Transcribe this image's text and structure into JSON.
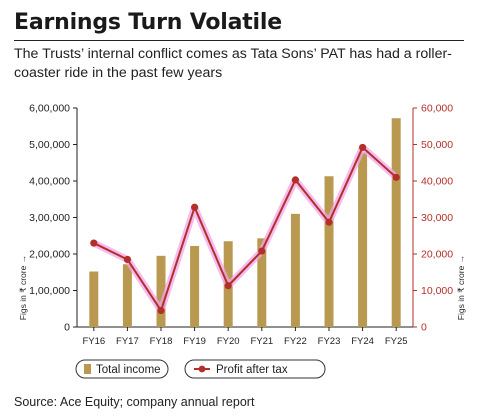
{
  "header": {
    "title": "Earnings Turn Volatile",
    "subtitle": "The Trusts’ internal conflict comes as Tata Sons’ PAT has had a roller-coaster ride in the past few years"
  },
  "source": "Source: Ace Equity; company annual report",
  "chart_data": {
    "type": "bar+line",
    "categories": [
      "FY16",
      "FY17",
      "FY18",
      "FY19",
      "FY20",
      "FY21",
      "FY22",
      "FY23",
      "FY24",
      "FY25"
    ],
    "series": [
      {
        "name": "Total income",
        "type": "bar",
        "axis": "left",
        "color": "#b8994f",
        "values": [
          152000,
          172000,
          195000,
          222000,
          235000,
          243000,
          310000,
          413000,
          478000,
          572000
        ]
      },
      {
        "name": "Profit after tax",
        "type": "line",
        "axis": "right",
        "color": "#b3302a",
        "glow": "#f0a6ea",
        "values": [
          23000,
          18500,
          4500,
          32800,
          11300,
          20800,
          40300,
          28700,
          49200,
          41000
        ]
      }
    ],
    "y_left": {
      "ylim": [
        0,
        600000
      ],
      "ticks": [
        "0",
        "1,00,000",
        "2,00,000",
        "3,00,000",
        "4,00,000",
        "5,00,000",
        "6,00,000"
      ],
      "label": "Figs in ₹ crore →"
    },
    "y_right": {
      "ylim": [
        0,
        60000
      ],
      "ticks": [
        "0",
        "10,000",
        "20,000",
        "30,000",
        "40,000",
        "50,000",
        "60,000"
      ],
      "label": "Figs in ₹ crore →",
      "color": "#b3302a"
    },
    "legend": [
      "Total income",
      "Profit after tax"
    ],
    "legend_position": "bottom",
    "grid": false
  }
}
